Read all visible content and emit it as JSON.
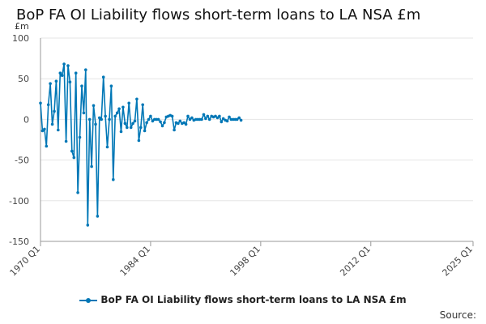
{
  "chart_data": {
    "type": "line",
    "title": "BoP FA OI Liability flows short-term loans to LA NSA £m",
    "ylabel": "£m",
    "xlabel": "",
    "ylim": [
      -150,
      100
    ],
    "yticks": [
      100,
      50,
      0,
      -50,
      -100,
      -150
    ],
    "xlim": [
      "1970 Q1",
      "2025 Q1"
    ],
    "xticks": [
      "1970 Q1",
      "1984 Q1",
      "1998 Q1",
      "2012 Q1",
      "2025 Q1"
    ],
    "grid": true,
    "legend": "bottom",
    "series": [
      {
        "name": "BoP FA OI Liability flows short-term loans to LA NSA £m",
        "color": "#0077b6",
        "start": "1970 Q1",
        "frequency": "quarterly",
        "values": [
          20,
          -14,
          -12,
          -33,
          18,
          44,
          -6,
          10,
          47,
          -13,
          57,
          54,
          68,
          -27,
          66,
          46,
          -39,
          -47,
          57,
          -90,
          -22,
          41,
          8,
          61,
          -130,
          0,
          -58,
          17,
          -6,
          -119,
          2,
          0,
          52,
          4,
          -34,
          0,
          41,
          -74,
          4,
          8,
          13,
          -15,
          15,
          -5,
          -10,
          20,
          -10,
          -5,
          -2,
          25,
          -26,
          -10,
          18,
          -14,
          -4,
          0,
          4,
          -2,
          0,
          0,
          0,
          -3,
          -8,
          -4,
          3,
          4,
          5,
          4,
          -13,
          -4,
          -5,
          -2,
          -5,
          -4,
          -6,
          4,
          0,
          2,
          -1,
          0,
          0,
          0,
          0,
          6,
          1,
          4,
          0,
          4,
          3,
          4,
          2,
          4,
          -3,
          1,
          -1,
          -2,
          3,
          0,
          0,
          0,
          0,
          2,
          -1
        ]
      }
    ],
    "source_label": "Source:"
  }
}
